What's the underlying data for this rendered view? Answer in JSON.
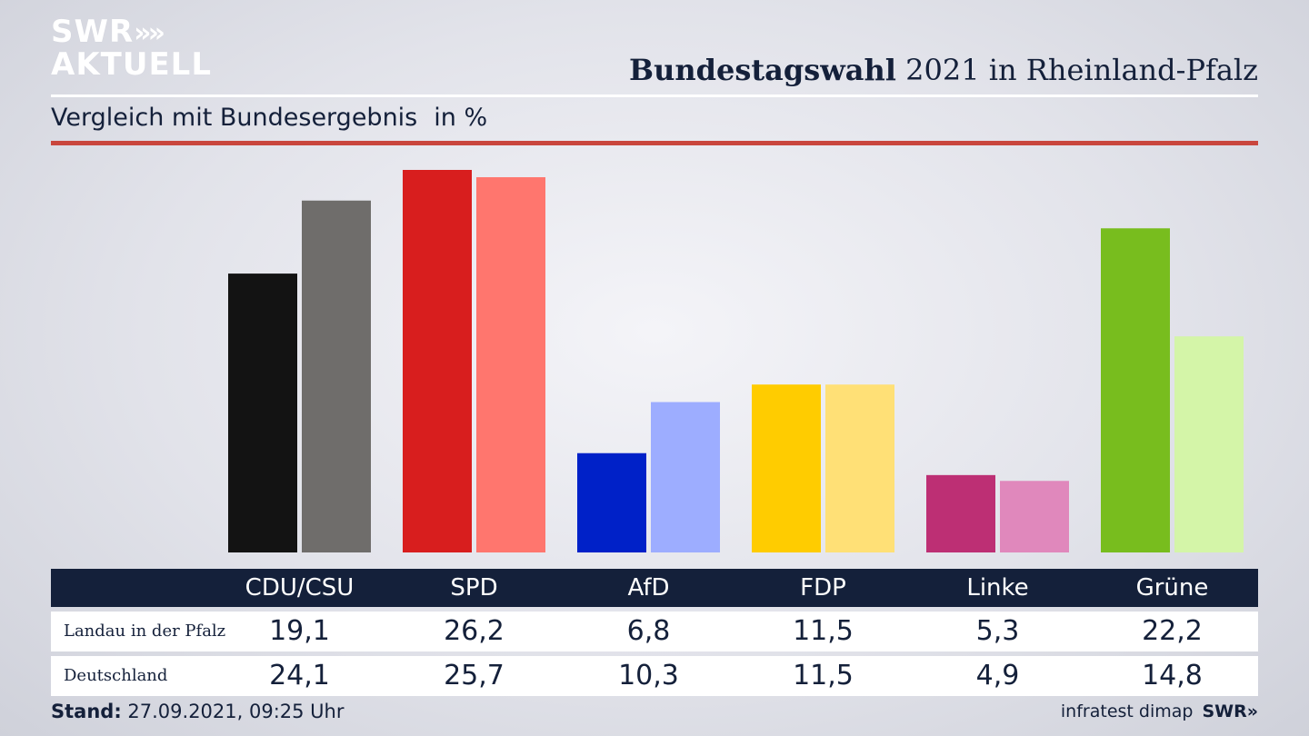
{
  "brand": {
    "line1": "SWR",
    "arrows": "»",
    "line2": "AKTUELL"
  },
  "header": {
    "title_bold": "Bundestagswahl",
    "title_rest": " 2021 in Rheinland-Pfalz",
    "subtitle": "Vergleich mit Bundesergebnis",
    "unit": "in %"
  },
  "colors": {
    "header_bar": "#14203a",
    "accent_rule": "#c9463d"
  },
  "chart_data": {
    "type": "bar",
    "title": "Bundestagswahl 2021 in Rheinland-Pfalz",
    "subtitle": "Vergleich mit Bundesergebnis",
    "ylabel": "in %",
    "categories": [
      "CDU/CSU",
      "SPD",
      "AfD",
      "FDP",
      "Linke",
      "Grüne"
    ],
    "series": [
      {
        "name": "Landau in der Pfalz",
        "values": [
          19.1,
          26.2,
          6.8,
          11.5,
          5.3,
          22.2
        ],
        "labels": [
          "19,1",
          "26,2",
          "6,8",
          "11,5",
          "5,3",
          "22,2"
        ],
        "colors": [
          "#131313",
          "#d81e1e",
          "#0021c8",
          "#ffcc00",
          "#bd2f74",
          "#78bd1e"
        ]
      },
      {
        "name": "Deutschland",
        "values": [
          24.1,
          25.7,
          10.3,
          11.5,
          4.9,
          14.8
        ],
        "labels": [
          "24,1",
          "25,7",
          "10,3",
          "11,5",
          "4,9",
          "14,8"
        ],
        "colors": [
          "#6f6d6b",
          "#ff766e",
          "#9dadff",
          "#ffe076",
          "#e088bc",
          "#d4f5a8"
        ]
      }
    ],
    "ylim": [
      0,
      26.2
    ],
    "grid": false,
    "legend": "table-below"
  },
  "footer": {
    "stand_label": "Stand:",
    "stand_value": " 27.09.2021, 09:25 Uhr",
    "source": "infratest dimap",
    "source_brand": "SWR»"
  }
}
